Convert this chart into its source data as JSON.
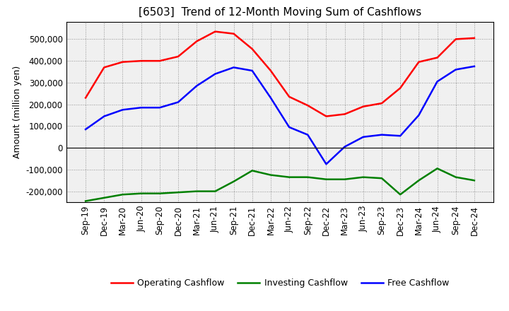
{
  "title": "[6503]  Trend of 12-Month Moving Sum of Cashflows",
  "ylabel": "Amount (million yen)",
  "ylim": [
    -250000,
    580000
  ],
  "yticks": [
    -200000,
    -100000,
    0,
    100000,
    200000,
    300000,
    400000,
    500000
  ],
  "x_labels": [
    "Sep-19",
    "Dec-19",
    "Mar-20",
    "Jun-20",
    "Sep-20",
    "Dec-20",
    "Mar-21",
    "Jun-21",
    "Sep-21",
    "Dec-21",
    "Mar-22",
    "Jun-22",
    "Sep-22",
    "Dec-22",
    "Mar-23",
    "Jun-23",
    "Sep-23",
    "Dec-23",
    "Mar-24",
    "Jun-24",
    "Sep-24",
    "Dec-24"
  ],
  "operating": [
    230000,
    370000,
    395000,
    400000,
    400000,
    420000,
    490000,
    535000,
    525000,
    455000,
    355000,
    235000,
    195000,
    145000,
    155000,
    190000,
    205000,
    275000,
    395000,
    415000,
    500000,
    505000
  ],
  "investing": [
    -245000,
    -230000,
    -215000,
    -210000,
    -210000,
    -205000,
    -200000,
    -200000,
    -155000,
    -105000,
    -125000,
    -135000,
    -135000,
    -145000,
    -145000,
    -135000,
    -140000,
    -215000,
    -150000,
    -95000,
    -135000,
    -150000
  ],
  "free": [
    85000,
    145000,
    175000,
    185000,
    185000,
    210000,
    285000,
    340000,
    370000,
    355000,
    230000,
    95000,
    60000,
    -75000,
    5000,
    50000,
    60000,
    55000,
    150000,
    305000,
    360000,
    375000
  ],
  "operating_color": "#ff0000",
  "investing_color": "#008000",
  "free_color": "#0000ff",
  "bg_color": "#ffffff",
  "grid_color": "#888888",
  "plot_bg_color": "#f0f0f0",
  "legend_labels": [
    "Operating Cashflow",
    "Investing Cashflow",
    "Free Cashflow"
  ],
  "title_fontsize": 11,
  "axis_fontsize": 9,
  "tick_fontsize": 8.5,
  "linewidth": 1.8
}
